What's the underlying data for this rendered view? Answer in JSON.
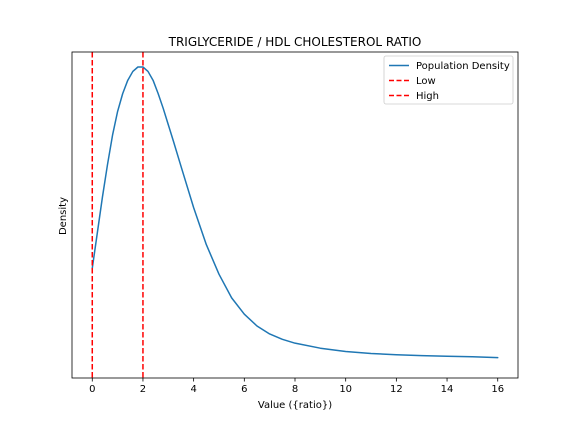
{
  "chart_data": {
    "type": "line",
    "title": "TRIGLYCERIDE / HDL CHOLESTEROL RATIO",
    "xlabel": "Value ({ratio})",
    "ylabel": "Density",
    "xlim": [
      -0.8,
      16.8
    ],
    "ylim": [
      0,
      1.0
    ],
    "xticks": [
      0,
      2,
      4,
      6,
      8,
      10,
      12,
      14,
      16
    ],
    "yticks_shown": false,
    "grid": false,
    "legend_position": "top-right",
    "series": [
      {
        "name": "Population Density",
        "color": "#1f77b4",
        "style": "solid",
        "x": [
          0,
          0.2,
          0.4,
          0.6,
          0.8,
          1.0,
          1.2,
          1.4,
          1.6,
          1.8,
          2.0,
          2.2,
          2.4,
          2.6,
          2.8,
          3.0,
          3.2,
          3.5,
          4.0,
          4.5,
          5.0,
          5.5,
          6.0,
          6.5,
          7.0,
          7.5,
          8.0,
          9.0,
          10.0,
          11.0,
          12.0,
          13.0,
          14.0,
          15.0,
          16.0
        ],
        "y": [
          0.32,
          0.44,
          0.56,
          0.67,
          0.77,
          0.85,
          0.91,
          0.955,
          0.985,
          1.0,
          1.0,
          0.985,
          0.955,
          0.91,
          0.86,
          0.805,
          0.75,
          0.665,
          0.525,
          0.4,
          0.3,
          0.22,
          0.165,
          0.125,
          0.098,
          0.08,
          0.067,
          0.05,
          0.039,
          0.032,
          0.028,
          0.025,
          0.023,
          0.021,
          0.018
        ]
      },
      {
        "name": "Low",
        "color": "#ff0000",
        "style": "dashed",
        "vline_x": 0
      },
      {
        "name": "High",
        "color": "#ff0000",
        "style": "dashed",
        "vline_x": 2
      }
    ]
  }
}
